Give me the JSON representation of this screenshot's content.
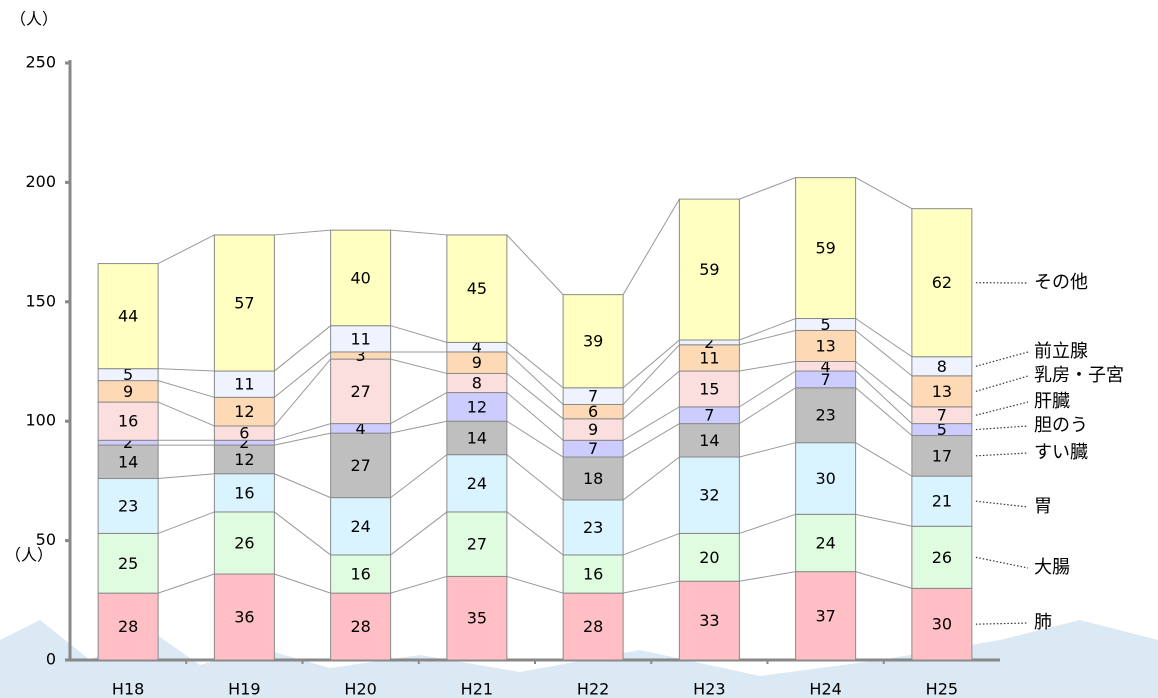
{
  "chart_data": {
    "type": "stacked_bar",
    "ylabel": "（人）",
    "annotations": [
      "（人）"
    ],
    "categories": [
      "H18",
      "H19",
      "H20",
      "H21",
      "H22",
      "H23",
      "H24",
      "H25"
    ],
    "series": [
      {
        "name": "肺",
        "color": "#ffbfc4",
        "values": [
          28,
          36,
          28,
          35,
          28,
          33,
          37,
          30
        ]
      },
      {
        "name": "大腸",
        "color": "#dffbe0",
        "values": [
          25,
          26,
          16,
          27,
          16,
          20,
          24,
          26
        ]
      },
      {
        "name": "胃",
        "color": "#d9f3ff",
        "values": [
          23,
          16,
          24,
          24,
          23,
          32,
          30,
          21
        ]
      },
      {
        "name": "すい臓",
        "color": "#bfbfbf",
        "values": [
          14,
          12,
          27,
          14,
          18,
          14,
          23,
          17
        ]
      },
      {
        "name": "胆のう",
        "color": "#ccccff",
        "values": [
          2,
          2,
          4,
          12,
          7,
          7,
          7,
          5
        ]
      },
      {
        "name": "肝臓",
        "color": "#fbdede",
        "values": [
          16,
          6,
          27,
          8,
          9,
          15,
          4,
          7
        ]
      },
      {
        "name": "乳房・子宮",
        "color": "#fdd9b5",
        "values": [
          9,
          12,
          3,
          9,
          6,
          11,
          13,
          13
        ]
      },
      {
        "name": "前立腺",
        "color": "#eef3ff",
        "values": [
          5,
          11,
          11,
          4,
          7,
          2,
          5,
          8
        ]
      },
      {
        "name": "その他",
        "color": "#ffffc2",
        "values": [
          44,
          57,
          40,
          45,
          39,
          59,
          59,
          62
        ]
      }
    ],
    "ylim": [
      0,
      250
    ],
    "yticks": [
      0,
      50,
      100,
      150,
      200,
      250
    ]
  }
}
